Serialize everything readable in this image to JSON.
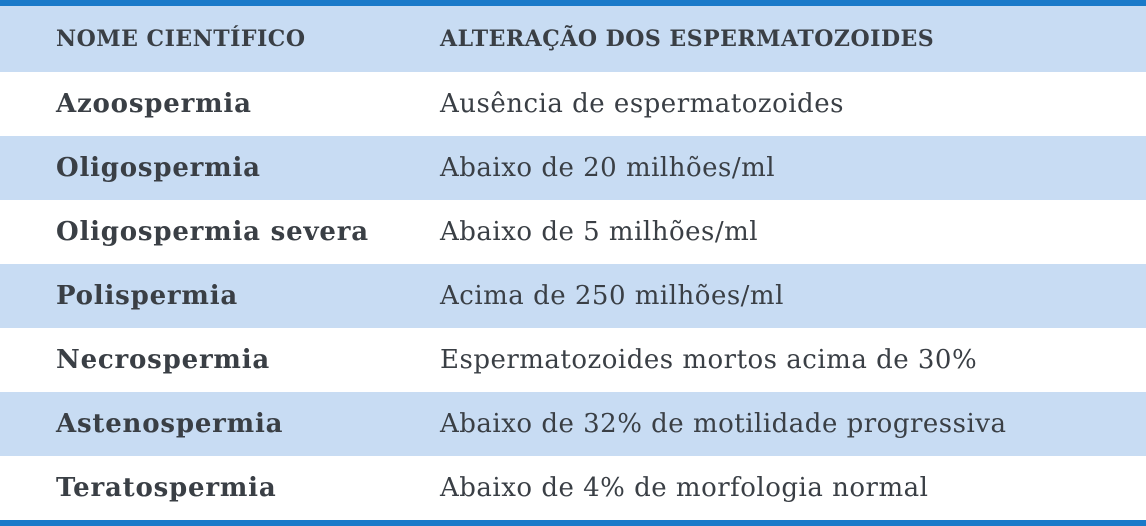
{
  "table": {
    "headers": {
      "name": "NOME CIENTÍFICO",
      "description": "ALTERAÇÃO DOS ESPERMATOZOIDES"
    },
    "rows": [
      {
        "name": "Azoospermia",
        "description": "Ausência de espermatozoides"
      },
      {
        "name": "Oligospermia",
        "description": "Abaixo de 20 milhões/ml"
      },
      {
        "name": "Oligospermia severa",
        "description": "Abaixo de 5 milhões/ml"
      },
      {
        "name": "Polispermia",
        "description": "Acima de 250 milhões/ml"
      },
      {
        "name": "Necrospermia",
        "description": "Espermatozoides mortos acima de 30%"
      },
      {
        "name": "Astenospermia",
        "description": "Abaixo de 32% de motilidade progressiva"
      },
      {
        "name": "Teratospermia",
        "description": "Abaixo de 4% de morfologia normal"
      }
    ]
  },
  "colors": {
    "border": "#1a7ac9",
    "band": "#c8dcf3",
    "text": "#3a3f45"
  }
}
